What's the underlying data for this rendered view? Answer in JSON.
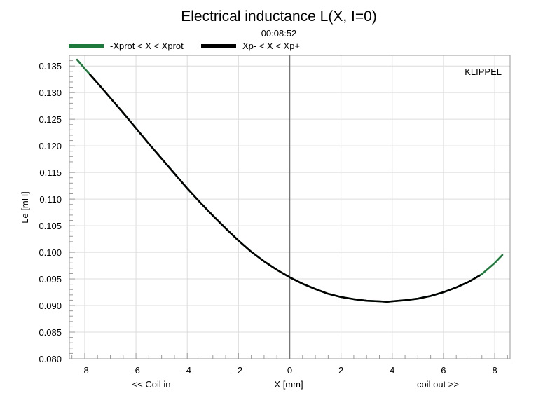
{
  "chart_data": {
    "type": "line",
    "title": "Electrical inductance L(X, I=0)",
    "subtitle": "00:08:52",
    "watermark": "KLIPPEL",
    "xlabel": "X [mm]",
    "ylabel": "Le [mH]",
    "x_annotations": {
      "left": "<< Coil in",
      "right": "coil out >>"
    },
    "xlim": [
      -8.6,
      8.6
    ],
    "ylim": [
      0.08,
      0.137
    ],
    "x_ticks": [
      -8,
      -6,
      -4,
      -2,
      0,
      2,
      4,
      6,
      8
    ],
    "x_tick_labels": [
      "-8",
      "-6",
      "-4",
      "-2",
      "0",
      "2",
      "4",
      "6",
      "8"
    ],
    "y_ticks": [
      0.08,
      0.085,
      0.09,
      0.095,
      0.1,
      0.105,
      0.11,
      0.115,
      0.12,
      0.125,
      0.13,
      0.135
    ],
    "y_tick_labels": [
      "0.080",
      "0.085",
      "0.090",
      "0.095",
      "0.100",
      "0.105",
      "0.110",
      "0.115",
      "0.120",
      "0.125",
      "0.130",
      "0.135"
    ],
    "grid": true,
    "legend_position": "top-left",
    "series": [
      {
        "name": "-Xprot < X < Xprot",
        "color": "#1e7a3c",
        "x": [
          -8.3,
          -8.0,
          -7.5,
          -7.0,
          -6.5,
          -6.0,
          -5.5,
          -5.0,
          -4.5,
          -4.0,
          -3.5,
          -3.0,
          -2.5,
          -2.0,
          -1.5,
          -1.0,
          -0.5,
          0.0,
          0.5,
          1.0,
          1.5,
          2.0,
          2.5,
          3.0,
          3.5,
          3.8,
          4.0,
          4.5,
          5.0,
          5.5,
          6.0,
          6.5,
          7.0,
          7.5,
          8.0,
          8.3
        ],
        "y": [
          0.1362,
          0.1345,
          0.1318,
          0.129,
          0.1262,
          0.1233,
          0.1204,
          0.1176,
          0.1148,
          0.112,
          0.1094,
          0.1069,
          0.1045,
          0.1022,
          0.1001,
          0.0983,
          0.0967,
          0.0953,
          0.0941,
          0.0931,
          0.0922,
          0.0916,
          0.0912,
          0.0909,
          0.0908,
          0.0907,
          0.0908,
          0.091,
          0.0913,
          0.0918,
          0.0925,
          0.0934,
          0.0945,
          0.0959,
          0.098,
          0.0995
        ]
      },
      {
        "name": "Xp- < X < Xp+",
        "color": "#000000",
        "x": [
          -7.8,
          -7.5,
          -7.0,
          -6.5,
          -6.0,
          -5.5,
          -5.0,
          -4.5,
          -4.0,
          -3.5,
          -3.0,
          -2.5,
          -2.0,
          -1.5,
          -1.0,
          -0.5,
          0.0,
          0.5,
          1.0,
          1.5,
          2.0,
          2.5,
          3.0,
          3.5,
          3.8,
          4.0,
          4.5,
          5.0,
          5.5,
          6.0,
          6.5,
          7.0,
          7.4
        ],
        "y": [
          0.1334,
          0.1318,
          0.129,
          0.1262,
          0.1233,
          0.1204,
          0.1176,
          0.1148,
          0.112,
          0.1094,
          0.1069,
          0.1045,
          0.1022,
          0.1001,
          0.0983,
          0.0967,
          0.0953,
          0.0941,
          0.0931,
          0.0922,
          0.0916,
          0.0912,
          0.0909,
          0.0908,
          0.0907,
          0.0908,
          0.091,
          0.0913,
          0.0918,
          0.0925,
          0.0934,
          0.0945,
          0.0956
        ]
      }
    ]
  }
}
